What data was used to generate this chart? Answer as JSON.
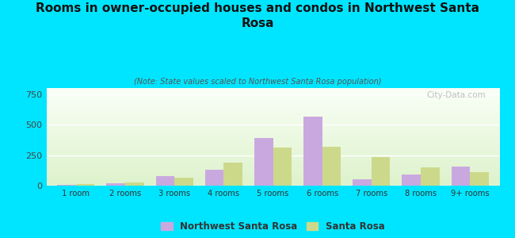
{
  "title": "Rooms in owner-occupied houses and condos in Northwest Santa\nRosa",
  "subtitle": "(Note: State values scaled to Northwest Santa Rosa population)",
  "categories": [
    "1 room",
    "2 rooms",
    "3 rooms",
    "4 rooms",
    "5 rooms",
    "6 rooms",
    "7 rooms",
    "8 rooms",
    "9+ rooms"
  ],
  "northwest_values": [
    5,
    20,
    75,
    130,
    390,
    565,
    55,
    90,
    155
  ],
  "santa_rosa_values": [
    10,
    25,
    65,
    190,
    315,
    320,
    235,
    150,
    110
  ],
  "nw_color": "#c9a8e0",
  "sr_color": "#ccd98a",
  "background_outer": "#00e5ff",
  "ylim": [
    0,
    800
  ],
  "yticks": [
    0,
    250,
    500,
    750
  ],
  "bar_width": 0.38,
  "legend_nw": "Northwest Santa Rosa",
  "legend_sr": "Santa Rosa",
  "watermark": "City-Data.com"
}
